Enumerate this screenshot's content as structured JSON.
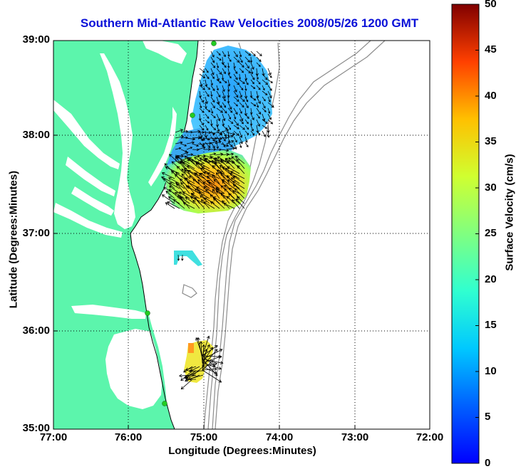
{
  "title": "Southern Mid-Atlantic Raw Velocities 2008/05/26 1200 GMT",
  "x_axis": {
    "label": "Longitude (Degrees:Minutes)",
    "ticks": [
      "77:00",
      "76:00",
      "75:00",
      "74:00",
      "73:00",
      "72:00"
    ]
  },
  "y_axis": {
    "label": "Latitude (Degrees:Minutes)",
    "ticks": [
      "39:00",
      "38:00",
      "37:00",
      "36:00",
      "35:00"
    ]
  },
  "colorbar": {
    "label": "Surface Velocity (cm/s)",
    "ticks": [
      "50",
      "45",
      "40",
      "35",
      "30",
      "25",
      "20",
      "15",
      "10",
      "5",
      "0"
    ],
    "min": 0,
    "max": 50,
    "colormap": "jet"
  },
  "map": {
    "extent": {
      "lon": [
        -77,
        -72
      ],
      "lat": [
        35,
        39
      ]
    },
    "grid": true,
    "land_color": "#5cf5ac",
    "bathymetry_color": "#8c8c8c",
    "station_color": "#22cc22"
  }
}
